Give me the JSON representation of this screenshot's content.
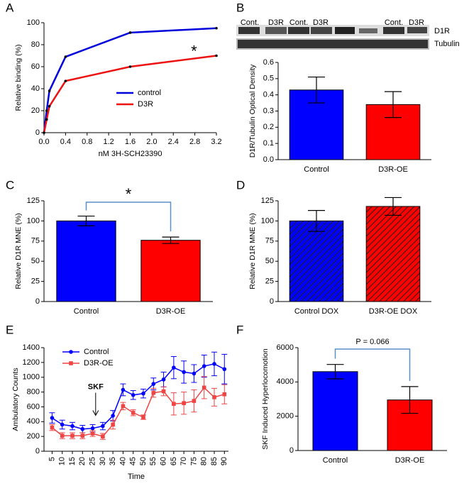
{
  "chart_data": [
    {
      "type": "line",
      "panel": "A",
      "x": [
        0,
        0.05,
        0.1,
        0.4,
        1.6,
        3.2
      ],
      "series": [
        {
          "name": "control",
          "color": "#0000dd",
          "values": [
            0,
            20,
            38,
            69,
            91,
            95
          ]
        },
        {
          "name": "D3R",
          "color": "#ee1111",
          "values": [
            0,
            12,
            24,
            47,
            60,
            70
          ]
        }
      ],
      "xlim": [
        0,
        3.2
      ],
      "xticks": [
        {
          "value": 0,
          "label": "0.0"
        },
        0.4,
        0.8,
        1.2,
        1.6,
        {
          "value": 2,
          "label": "2.0"
        },
        2.4,
        2.8,
        3.2
      ],
      "ylim": [
        0,
        100
      ],
      "yticks": [
        0,
        20,
        40,
        60,
        80,
        100
      ],
      "xlabel": "nM 3H-SCH23390",
      "ylabel": "Relative binding (%)",
      "annotation": "*",
      "legend": "center right"
    },
    {
      "type": "bar",
      "panel": "B",
      "categories": [
        "Control",
        "D3R-OE"
      ],
      "values": [
        0.43,
        0.34
      ],
      "errors": [
        0.08,
        0.08
      ],
      "colors": [
        "#0000ff",
        "#ff0000"
      ],
      "ylim": [
        0,
        0.6
      ],
      "yticks": [
        {
          "value": 0,
          "label": "0.0"
        },
        0.1,
        0.2,
        0.3,
        0.4,
        0.5,
        0.6
      ],
      "ylabel": "D1R/Tubulin Optical Density",
      "blot": {
        "lanes": [
          "Cont.",
          "D3R",
          "Cont.",
          "D3R",
          "Cont.",
          "D3R"
        ],
        "rows": [
          "D1R",
          "Tubulin"
        ]
      }
    },
    {
      "type": "bar",
      "panel": "C",
      "categories": [
        "Control",
        "D3R-OE"
      ],
      "values": [
        100,
        76
      ],
      "errors": [
        6,
        4
      ],
      "colors": [
        "#0000ff",
        "#ff0000"
      ],
      "ylim": [
        0,
        125
      ],
      "yticks": [
        0,
        25,
        50,
        75,
        100,
        125
      ],
      "ylabel": "Relative D1R MNE (%)",
      "annotation": "*"
    },
    {
      "type": "bar",
      "panel": "D",
      "categories": [
        "Control DOX",
        "D3R-OE DOX"
      ],
      "values": [
        100,
        118
      ],
      "errors": [
        13,
        11
      ],
      "colors": [
        "#0000ff",
        "#ff0000"
      ],
      "hatch": true,
      "ylim": [
        0,
        125
      ],
      "yticks": [
        0,
        25,
        50,
        75,
        100,
        125
      ],
      "ylabel": "Relative D1R MNE (%)"
    },
    {
      "type": "line",
      "panel": "E",
      "x": [
        5,
        10,
        15,
        20,
        25,
        30,
        35,
        40,
        45,
        50,
        55,
        60,
        65,
        70,
        75,
        80,
        85,
        90
      ],
      "series": [
        {
          "name": "Control",
          "color": "#0000ff",
          "values": [
            450,
            360,
            340,
            300,
            310,
            340,
            480,
            830,
            760,
            780,
            910,
            970,
            1130,
            1070,
            1050,
            1150,
            1180,
            1110
          ],
          "errors": [
            70,
            60,
            50,
            50,
            50,
            50,
            70,
            80,
            60,
            60,
            80,
            100,
            150,
            150,
            120,
            150,
            160,
            200
          ]
        },
        {
          "name": "D3R-OE",
          "color": "#ee4444",
          "values": [
            320,
            210,
            210,
            210,
            240,
            200,
            360,
            610,
            520,
            460,
            790,
            810,
            640,
            650,
            680,
            860,
            730,
            770
          ],
          "errors": [
            40,
            40,
            40,
            40,
            40,
            40,
            60,
            50,
            40,
            30,
            60,
            60,
            150,
            150,
            150,
            150,
            120,
            130
          ]
        }
      ],
      "xlim": [
        1,
        92
      ],
      "xticks": [
        5,
        10,
        15,
        20,
        25,
        30,
        35,
        40,
        45,
        50,
        55,
        60,
        65,
        70,
        75,
        80,
        85,
        90
      ],
      "ylim": [
        0,
        1400
      ],
      "yticks": [
        0,
        200,
        400,
        600,
        800,
        1000,
        1200,
        1400
      ],
      "xlabel": "Time",
      "ylabel": "Ambulatory Counts",
      "annotation": "SKF",
      "legend": "upper left"
    },
    {
      "type": "bar",
      "panel": "F",
      "categories": [
        "Control",
        "D3R-OE"
      ],
      "values": [
        4600,
        2950
      ],
      "errors": [
        420,
        780
      ],
      "colors": [
        "#0000ff",
        "#ff0000"
      ],
      "ylim": [
        0,
        6000
      ],
      "yticks": [
        0,
        2000,
        4000,
        6000
      ],
      "ylabel": "SKF Induced Hyperlocomotion",
      "annotation": "P = 0.066"
    }
  ]
}
